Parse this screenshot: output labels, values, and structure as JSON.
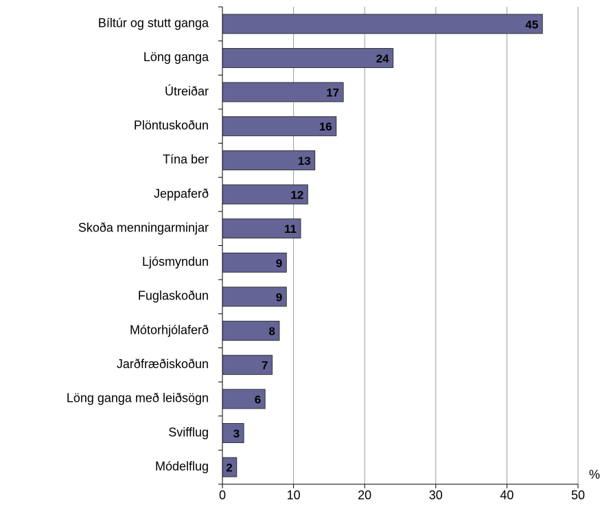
{
  "chart_data": {
    "type": "bar",
    "orientation": "horizontal",
    "categories": [
      "Bíltúr og stutt ganga",
      "Löng ganga",
      "Útreiðar",
      "Plöntuskoðun",
      "Tína ber",
      "Jeppaferð",
      "Skoða menningarminjar",
      "Ljósmyndun",
      "Fuglaskoðun",
      "Mótorhjólaferð",
      "Jarðfræðiskoðun",
      "Löng ganga með leiðsögn",
      "Svifflug",
      "Módelflug"
    ],
    "values": [
      45,
      24,
      17,
      16,
      13,
      12,
      11,
      9,
      9,
      8,
      7,
      6,
      3,
      2
    ],
    "color": "#646496",
    "xlabel": "%",
    "xlim": [
      0,
      50
    ],
    "xticks": [
      0,
      10,
      20,
      30,
      40,
      50
    ],
    "grid": true
  }
}
